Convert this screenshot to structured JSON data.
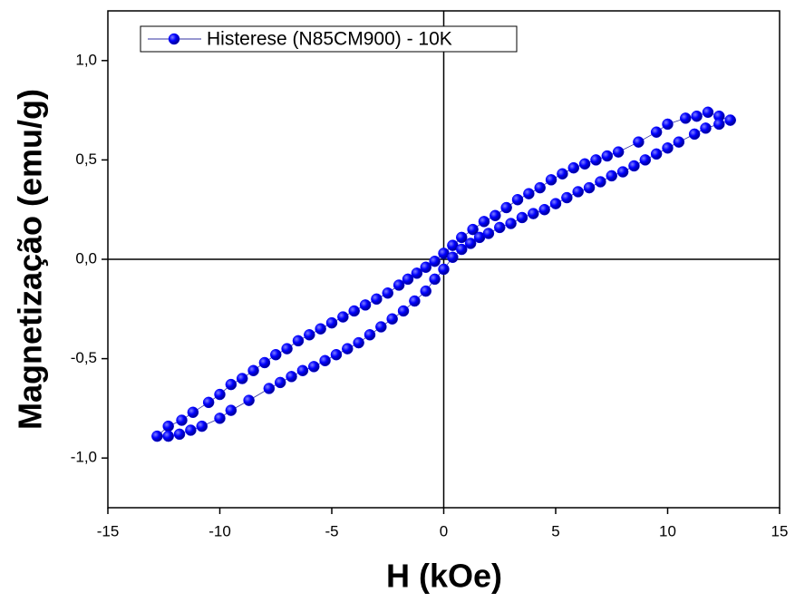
{
  "chart_data": {
    "type": "scatter",
    "x_label": "H (kOe)",
    "y_label": "Magnetização (emu/g)",
    "xlim": [
      -15,
      15
    ],
    "xticks": [
      -15,
      -10,
      -5,
      0,
      5,
      10,
      15
    ],
    "ylim": [
      -1.25,
      1.25
    ],
    "yticks": [
      {
        "value": -1.0,
        "label": "-1,0"
      },
      {
        "value": -0.5,
        "label": "-0,5"
      },
      {
        "value": 0.0,
        "label": "0,0"
      },
      {
        "value": 0.5,
        "label": "0,5"
      },
      {
        "value": 1.0,
        "label": "1,0"
      }
    ],
    "legend": "upper left",
    "series": [
      {
        "name": "Histerese (N85CM900) - 10K",
        "color": "#0000ff",
        "x": [
          12.8,
          12.3,
          11.8,
          11.3,
          10.8,
          10.0,
          9.5,
          8.7,
          7.8,
          7.3,
          6.8,
          6.3,
          5.8,
          5.3,
          4.8,
          4.3,
          3.8,
          3.3,
          2.8,
          2.3,
          1.8,
          1.3,
          0.8,
          0.4,
          0.0,
          -0.4,
          -0.8,
          -1.2,
          -1.6,
          -2.0,
          -2.5,
          -3.0,
          -3.5,
          -4.0,
          -4.5,
          -5.0,
          -5.5,
          -6.0,
          -6.5,
          -7.0,
          -7.5,
          -8.0,
          -8.5,
          -9.0,
          -9.5,
          -10.0,
          -10.5,
          -11.2,
          -11.7,
          -12.3,
          -12.8,
          -12.3,
          -11.8,
          -11.3,
          -10.8,
          -10.0,
          -9.5,
          -8.7,
          -7.8,
          -7.3,
          -6.8,
          -6.3,
          -5.8,
          -5.3,
          -4.8,
          -4.3,
          -3.8,
          -3.3,
          -2.8,
          -2.3,
          -1.8,
          -1.3,
          -0.8,
          -0.4,
          0.0,
          0.4,
          0.8,
          1.2,
          1.6,
          2.0,
          2.5,
          3.0,
          3.5,
          4.0,
          4.5,
          5.0,
          5.5,
          6.0,
          6.5,
          7.0,
          7.5,
          8.0,
          8.5,
          9.0,
          9.5,
          10.0,
          10.5,
          11.2,
          11.7,
          12.3,
          12.8
        ],
        "values": [
          0.7,
          0.72,
          0.74,
          0.72,
          0.71,
          0.68,
          0.64,
          0.59,
          0.54,
          0.52,
          0.5,
          0.48,
          0.46,
          0.43,
          0.4,
          0.36,
          0.33,
          0.3,
          0.26,
          0.22,
          0.19,
          0.15,
          0.11,
          0.07,
          0.03,
          -0.01,
          -0.04,
          -0.07,
          -0.1,
          -0.13,
          -0.17,
          -0.2,
          -0.23,
          -0.26,
          -0.29,
          -0.32,
          -0.35,
          -0.38,
          -0.41,
          -0.45,
          -0.48,
          -0.52,
          -0.56,
          -0.6,
          -0.63,
          -0.68,
          -0.72,
          -0.77,
          -0.81,
          -0.84,
          -0.89,
          -0.89,
          -0.88,
          -0.86,
          -0.84,
          -0.8,
          -0.76,
          -0.71,
          -0.65,
          -0.62,
          -0.59,
          -0.56,
          -0.54,
          -0.51,
          -0.48,
          -0.45,
          -0.42,
          -0.38,
          -0.34,
          -0.3,
          -0.26,
          -0.21,
          -0.16,
          -0.1,
          -0.05,
          0.01,
          0.05,
          0.08,
          0.11,
          0.13,
          0.16,
          0.18,
          0.21,
          0.23,
          0.25,
          0.28,
          0.31,
          0.34,
          0.36,
          0.39,
          0.42,
          0.44,
          0.47,
          0.5,
          0.53,
          0.56,
          0.59,
          0.63,
          0.66,
          0.68,
          0.7
        ]
      }
    ]
  }
}
